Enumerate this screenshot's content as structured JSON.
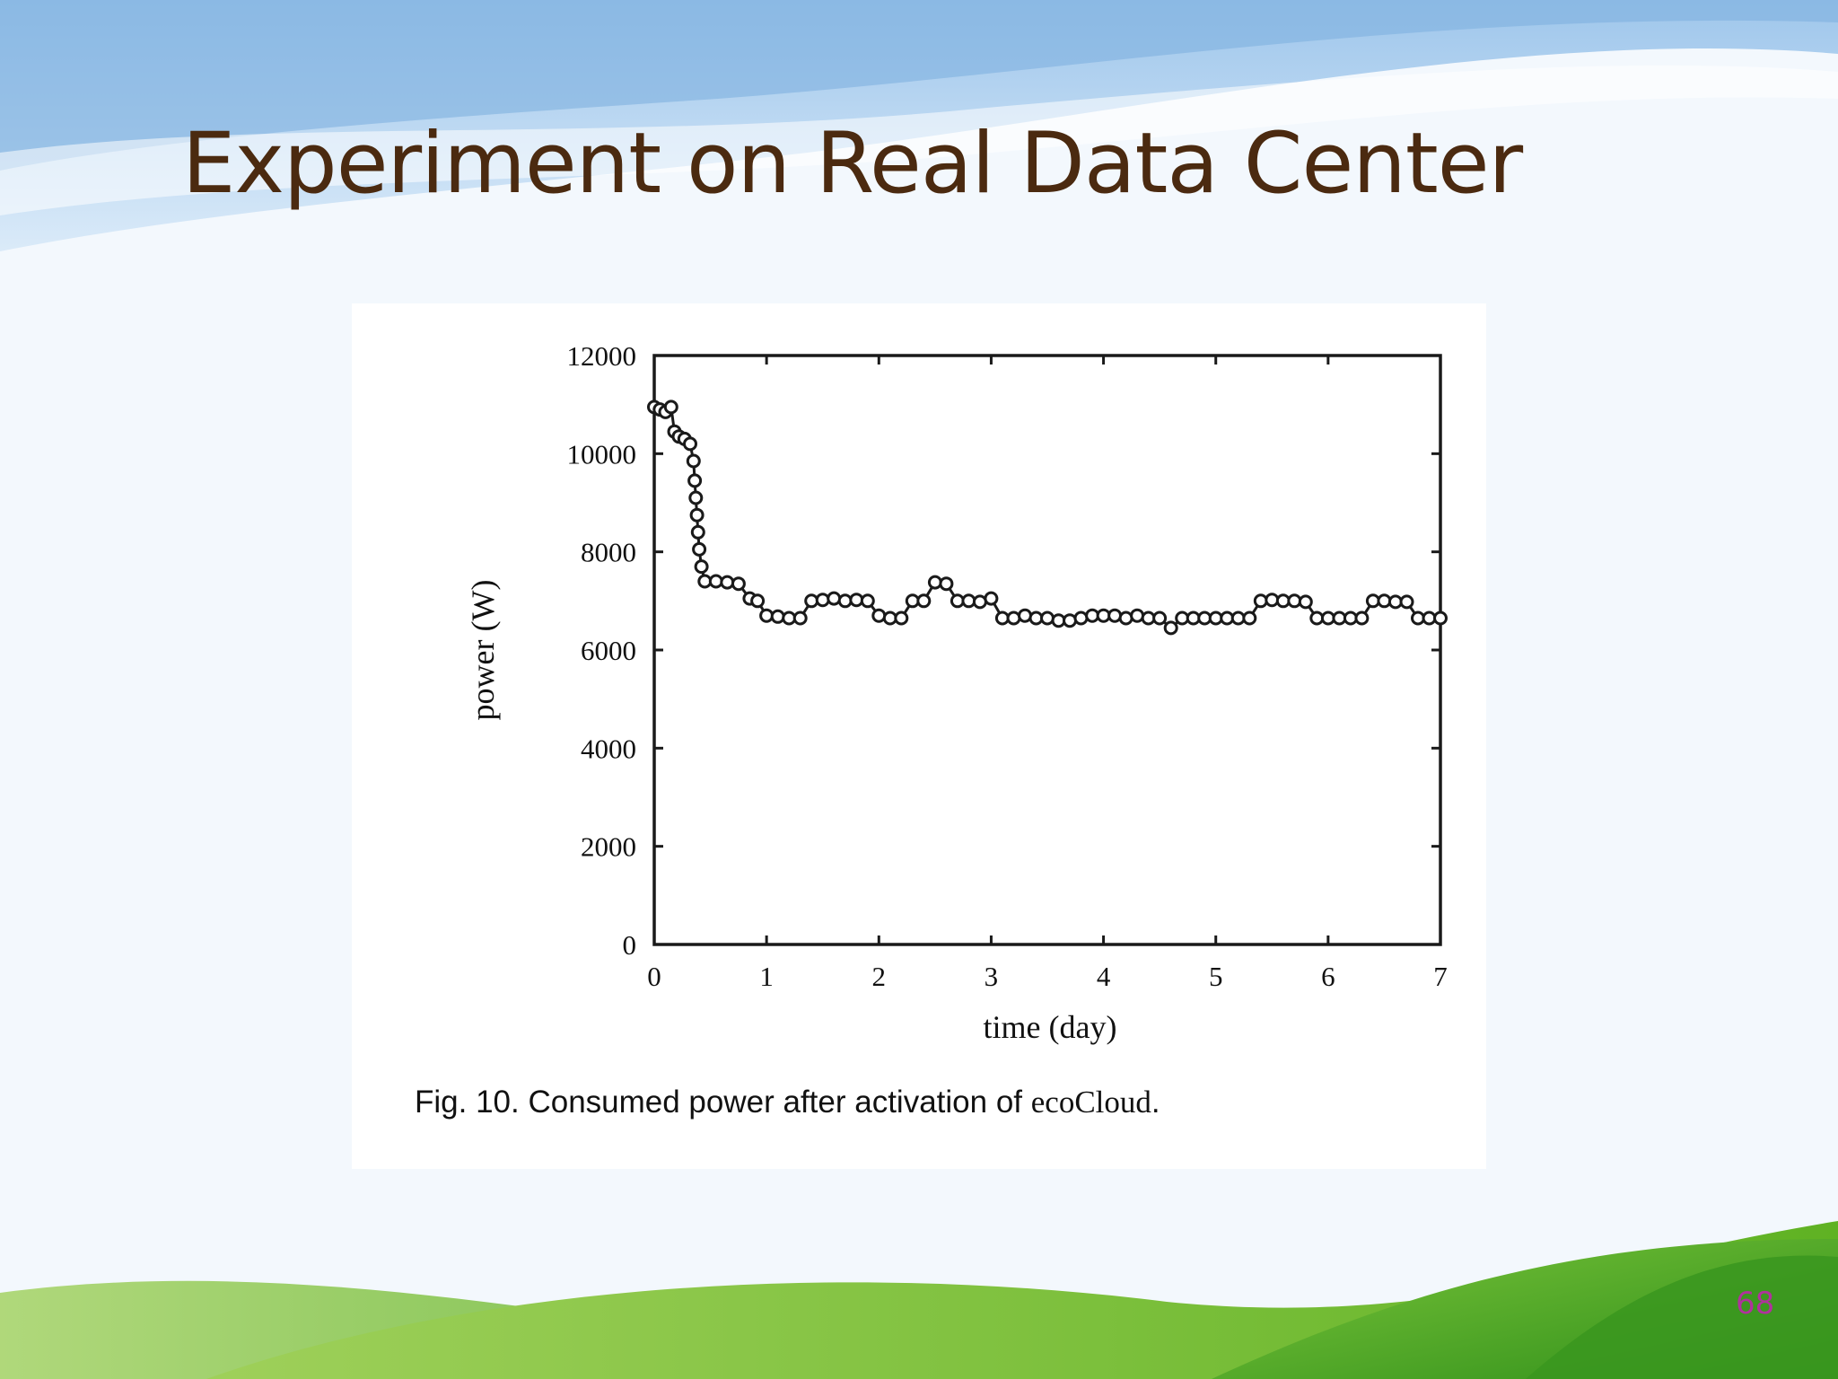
{
  "slide": {
    "title": "Experiment on Real Data Center",
    "page_number": "68"
  },
  "figure": {
    "caption_prefix": "Fig. 10. Consumed power after activation of ",
    "caption_name": "ecoCloud",
    "caption_suffix": "."
  },
  "colors": {
    "title": "#4b2a10",
    "page_number": "#b0329c",
    "data": "#1a1a1a",
    "sky_blue": "#a9cdef",
    "grass_green": "#6cbf2a"
  },
  "chart_data": {
    "type": "scatter",
    "title": "",
    "xlabel": "time (day)",
    "ylabel": "power (W)",
    "xlim": [
      0,
      7
    ],
    "ylim": [
      0,
      12000
    ],
    "xticks": [
      0,
      1,
      2,
      3,
      4,
      5,
      6,
      7
    ],
    "yticks": [
      0,
      2000,
      4000,
      6000,
      8000,
      10000,
      12000
    ],
    "grid": false,
    "legend": "none",
    "marker": "open-circle",
    "series": [
      {
        "points": [
          [
            0.0,
            10950
          ],
          [
            0.05,
            10900
          ],
          [
            0.1,
            10850
          ],
          [
            0.15,
            10950
          ],
          [
            0.18,
            10450
          ],
          [
            0.22,
            10350
          ],
          [
            0.27,
            10300
          ],
          [
            0.32,
            10200
          ],
          [
            0.35,
            9850
          ],
          [
            0.36,
            9450
          ],
          [
            0.37,
            9100
          ],
          [
            0.38,
            8750
          ],
          [
            0.39,
            8400
          ],
          [
            0.4,
            8050
          ],
          [
            0.42,
            7700
          ],
          [
            0.45,
            7400
          ],
          [
            0.55,
            7400
          ],
          [
            0.65,
            7380
          ],
          [
            0.75,
            7350
          ],
          [
            0.85,
            7050
          ],
          [
            0.92,
            7000
          ],
          [
            1.0,
            6700
          ],
          [
            1.1,
            6680
          ],
          [
            1.2,
            6650
          ],
          [
            1.3,
            6650
          ],
          [
            1.4,
            7000
          ],
          [
            1.5,
            7020
          ],
          [
            1.6,
            7050
          ],
          [
            1.7,
            7000
          ],
          [
            1.8,
            7020
          ],
          [
            1.9,
            7000
          ],
          [
            2.0,
            6700
          ],
          [
            2.1,
            6650
          ],
          [
            2.2,
            6650
          ],
          [
            2.3,
            7000
          ],
          [
            2.4,
            7000
          ],
          [
            2.5,
            7380
          ],
          [
            2.6,
            7350
          ],
          [
            2.7,
            7000
          ],
          [
            2.8,
            7000
          ],
          [
            2.9,
            6980
          ],
          [
            3.0,
            7050
          ],
          [
            3.1,
            6650
          ],
          [
            3.2,
            6650
          ],
          [
            3.3,
            6700
          ],
          [
            3.4,
            6650
          ],
          [
            3.5,
            6650
          ],
          [
            3.6,
            6600
          ],
          [
            3.7,
            6600
          ],
          [
            3.8,
            6650
          ],
          [
            3.9,
            6700
          ],
          [
            4.0,
            6700
          ],
          [
            4.1,
            6700
          ],
          [
            4.2,
            6650
          ],
          [
            4.3,
            6700
          ],
          [
            4.4,
            6650
          ],
          [
            4.5,
            6650
          ],
          [
            4.6,
            6450
          ],
          [
            4.7,
            6650
          ],
          [
            4.8,
            6650
          ],
          [
            4.9,
            6650
          ],
          [
            5.0,
            6650
          ],
          [
            5.1,
            6650
          ],
          [
            5.2,
            6650
          ],
          [
            5.3,
            6650
          ],
          [
            5.4,
            7000
          ],
          [
            5.5,
            7020
          ],
          [
            5.6,
            7000
          ],
          [
            5.7,
            7000
          ],
          [
            5.8,
            6980
          ],
          [
            5.9,
            6650
          ],
          [
            6.0,
            6650
          ],
          [
            6.1,
            6650
          ],
          [
            6.2,
            6650
          ],
          [
            6.3,
            6650
          ],
          [
            6.4,
            7000
          ],
          [
            6.5,
            7000
          ],
          [
            6.6,
            6980
          ],
          [
            6.7,
            6980
          ],
          [
            6.8,
            6650
          ],
          [
            6.9,
            6650
          ],
          [
            7.0,
            6650
          ]
        ]
      }
    ]
  }
}
